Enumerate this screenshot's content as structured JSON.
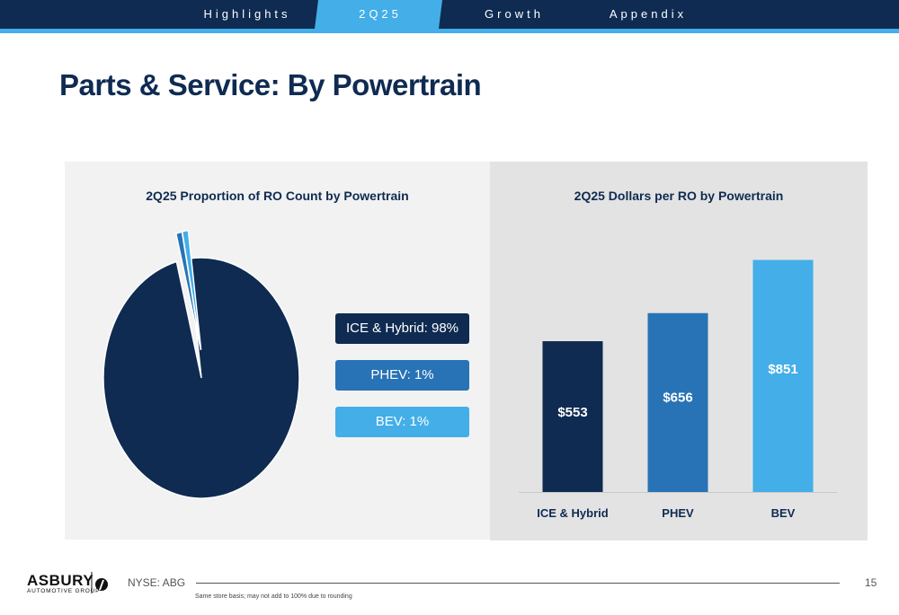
{
  "nav": {
    "items": [
      {
        "label": "Highlights",
        "active": false
      },
      {
        "label": "2Q25",
        "active": true
      },
      {
        "label": "Growth",
        "active": false
      },
      {
        "label": "Appendix",
        "active": false
      }
    ],
    "active_color": "#43aee8",
    "bg_color": "#0f2b52"
  },
  "page_title": "Parts & Service: By Powertrain",
  "chart_data": [
    {
      "type": "pie",
      "title": "2Q25 Proportion of RO Count by Powertrain",
      "slices": [
        {
          "label": "ICE & Hybrid",
          "value": 98,
          "color": "#0f2b52"
        },
        {
          "label": "PHEV",
          "value": 1,
          "color": "#2873b5"
        },
        {
          "label": "BEV",
          "value": 1,
          "color": "#43aee8"
        }
      ],
      "legend": [
        {
          "text": "ICE & Hybrid: 98%",
          "color": "#0f2b52"
        },
        {
          "text": "PHEV: 1%",
          "color": "#2873b5"
        },
        {
          "text": "BEV: 1%",
          "color": "#43aee8"
        }
      ],
      "legend_position": "right"
    },
    {
      "type": "bar",
      "title": "2Q25 Dollars per RO by Powertrain",
      "categories": [
        "ICE & Hybrid",
        "PHEV",
        "BEV"
      ],
      "values": [
        553,
        656,
        851
      ],
      "data_labels": [
        "$553",
        "$656",
        "$851"
      ],
      "colors": [
        "#0f2b52",
        "#2873b5",
        "#43aee8"
      ],
      "ylim": [
        0,
        900
      ],
      "grid": false
    }
  ],
  "footer": {
    "logo_text": "ASBURY",
    "logo_sub": "AUTOMOTIVE GROUP",
    "ticker": "NYSE: ABG",
    "page_number": "15",
    "note": "Same store basis; may not add to 100% due to rounding"
  }
}
